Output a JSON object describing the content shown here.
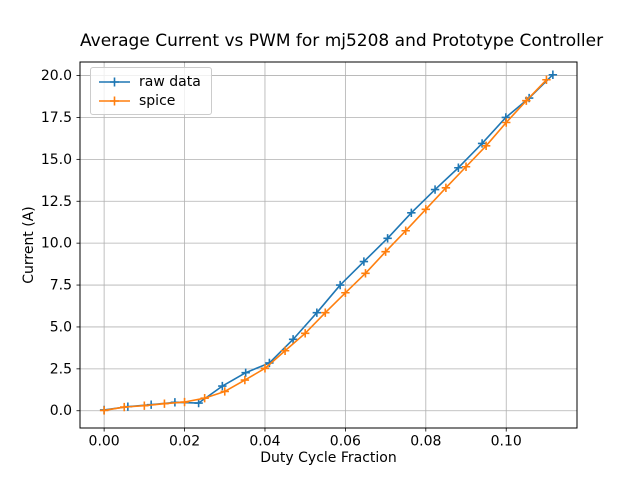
{
  "chart_data": {
    "type": "line",
    "title": "Average Current vs PWM for mj5208 and Prototype Controller",
    "xlabel": "Duty Cycle Fraction",
    "ylabel": "Current (A)",
    "grid": true,
    "legend_position": "upper left",
    "background_color": "#ffffff",
    "grid_color": "#b0b0b0",
    "spine_color": "#000000",
    "xlim": [
      -0.006,
      0.1176
    ],
    "ylim": [
      -1.03,
      20.81
    ],
    "xticks": {
      "values": [
        0.0,
        0.02,
        0.04,
        0.06,
        0.08,
        0.1
      ],
      "labels": [
        "0.00",
        "0.02",
        "0.04",
        "0.06",
        "0.08",
        "0.10"
      ]
    },
    "yticks": {
      "values": [
        0.0,
        2.5,
        5.0,
        7.5,
        10.0,
        12.5,
        15.0,
        17.5,
        20.0
      ],
      "labels": [
        "0.0",
        "2.5",
        "5.0",
        "7.5",
        "10.0",
        "12.5",
        "15.0",
        "17.5",
        "20.0"
      ]
    },
    "series": [
      {
        "name": "raw data",
        "color": "#1f77b4",
        "marker": "+",
        "x": [
          0.0,
          0.0059,
          0.0117,
          0.0176,
          0.0235,
          0.0294,
          0.0352,
          0.0411,
          0.047,
          0.0529,
          0.0587,
          0.0646,
          0.0705,
          0.0764,
          0.0823,
          0.0881,
          0.094,
          0.0999,
          0.1057,
          0.1116
        ],
        "y": [
          0.05,
          0.24,
          0.36,
          0.5,
          0.46,
          1.47,
          2.27,
          2.85,
          4.26,
          5.85,
          7.5,
          8.9,
          10.29,
          11.81,
          13.2,
          14.5,
          15.95,
          17.5,
          18.66,
          20.05
        ]
      },
      {
        "name": "spice",
        "color": "#ff7f0e",
        "marker": "+",
        "x": [
          0.0,
          0.005,
          0.01,
          0.015,
          0.02,
          0.025,
          0.03,
          0.035,
          0.04,
          0.045,
          0.05,
          0.055,
          0.06,
          0.065,
          0.07,
          0.075,
          0.08,
          0.085,
          0.09,
          0.095,
          0.1,
          0.105,
          0.11
        ],
        "y": [
          0.02,
          0.22,
          0.3,
          0.42,
          0.52,
          0.75,
          1.15,
          1.83,
          2.53,
          3.58,
          4.62,
          5.85,
          7.04,
          8.2,
          9.49,
          10.74,
          12.02,
          13.3,
          14.56,
          15.81,
          17.2,
          18.5,
          19.75
        ]
      }
    ]
  }
}
